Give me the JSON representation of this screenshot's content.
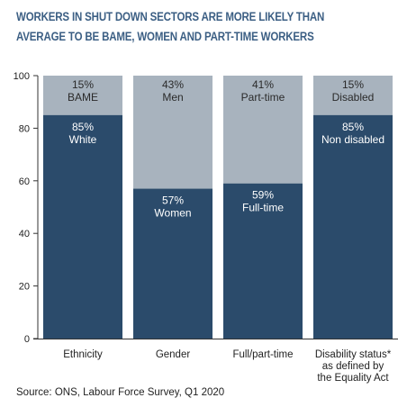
{
  "title_lines": [
    "WORKERS IN SHUT DOWN SECTORS ARE MORE LIKELY THAN",
    "AVERAGE TO BE BAME, WOMEN AND PART-TIME WORKERS"
  ],
  "source": "Source: ONS, Labour Force Survey, Q1 2020",
  "colors": {
    "dark": "#2b4b6b",
    "light": "#a8b3be",
    "title": "#3c5f84"
  },
  "chart_data": {
    "type": "bar",
    "stacked": true,
    "ylim": [
      0,
      100
    ],
    "yticks": [
      0,
      20,
      40,
      60,
      80,
      100
    ],
    "categories": [
      [
        "Ethnicity"
      ],
      [
        "Gender"
      ],
      [
        "Full/part-time"
      ],
      [
        "Disability status*",
        "as defined by",
        "the Equality Act"
      ]
    ],
    "bars": [
      {
        "bottom": {
          "value": 85,
          "label_pct": "85%",
          "label": "White"
        },
        "top": {
          "value": 15,
          "label_pct": "15%",
          "label": "BAME"
        }
      },
      {
        "bottom": {
          "value": 57,
          "label_pct": "57%",
          "label": "Women"
        },
        "top": {
          "value": 43,
          "label_pct": "43%",
          "label": "Men"
        }
      },
      {
        "bottom": {
          "value": 59,
          "label_pct": "59%",
          "label": "Full-time"
        },
        "top": {
          "value": 41,
          "label_pct": "41%",
          "label": "Part-time"
        }
      },
      {
        "bottom": {
          "value": 85,
          "label_pct": "85%",
          "label": "Non disabled"
        },
        "top": {
          "value": 15,
          "label_pct": "15%",
          "label": "Disabled"
        }
      }
    ],
    "grid": false
  }
}
